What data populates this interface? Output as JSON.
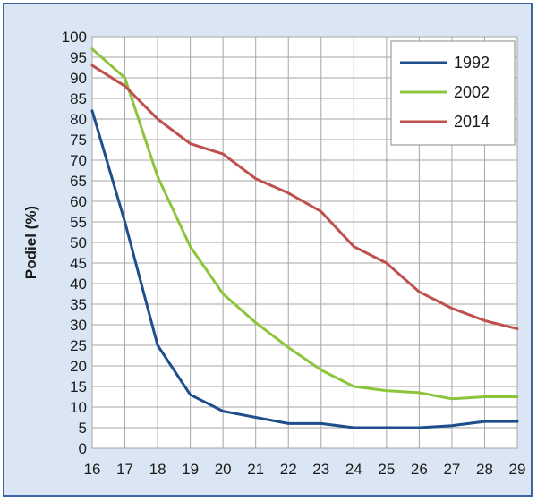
{
  "chart_data": {
    "type": "line",
    "title": "",
    "xlabel": "",
    "ylabel": "Podiel (%)",
    "x": [
      16,
      17,
      18,
      19,
      20,
      21,
      22,
      23,
      24,
      25,
      26,
      27,
      28,
      29
    ],
    "xlim": [
      16,
      29
    ],
    "ylim": [
      0,
      100
    ],
    "y_ticks": [
      0,
      5,
      10,
      15,
      20,
      25,
      30,
      35,
      40,
      45,
      50,
      55,
      60,
      65,
      70,
      75,
      80,
      85,
      90,
      95,
      100
    ],
    "grid": true,
    "legend_position": "top-right",
    "series": [
      {
        "name": "1992",
        "color": "#1f4e8c",
        "values": [
          82,
          55,
          25,
          13,
          9,
          7.5,
          6,
          6,
          5,
          5,
          5,
          5.5,
          6.5,
          6.5
        ]
      },
      {
        "name": "2002",
        "color": "#8cc43c",
        "values": [
          97,
          90,
          66,
          49,
          37.5,
          30.5,
          24.5,
          19,
          15,
          14,
          13.5,
          12,
          12.5,
          12.5
        ]
      },
      {
        "name": "2014",
        "color": "#c0504d",
        "values": [
          93,
          88,
          80,
          74,
          71.5,
          65.5,
          62,
          57.5,
          49,
          45,
          38,
          34,
          31,
          29
        ]
      }
    ]
  }
}
